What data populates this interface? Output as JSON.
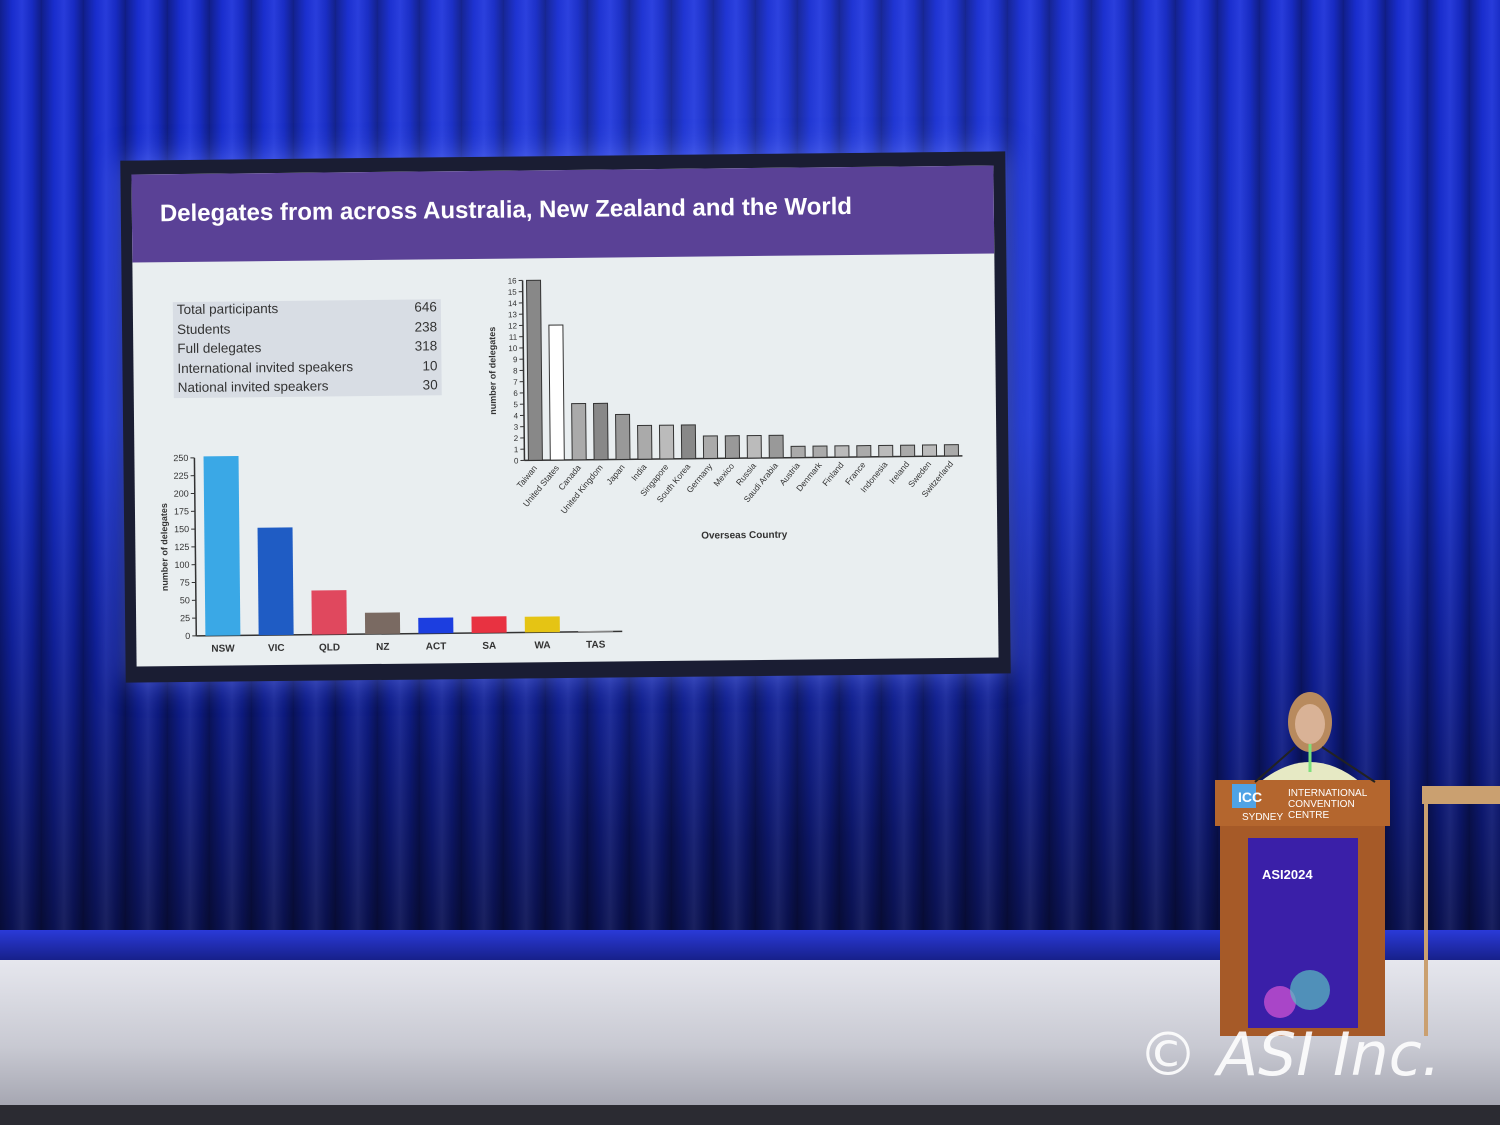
{
  "slide": {
    "title": "Delegates from across Australia, New Zealand and the World",
    "stats": [
      {
        "label": "Total participants",
        "value": "646"
      },
      {
        "label": "Students",
        "value": "238"
      },
      {
        "label": "Full delegates",
        "value": "318"
      },
      {
        "label": "International invited speakers",
        "value": "10"
      },
      {
        "label": "National invited speakers",
        "value": "30"
      }
    ]
  },
  "chart_data": [
    {
      "type": "bar",
      "title": "",
      "xlabel": "",
      "ylabel": "number of delegates",
      "ylim": [
        0,
        250
      ],
      "yticks": [
        0,
        25,
        50,
        75,
        100,
        125,
        150,
        175,
        200,
        225,
        250
      ],
      "categories": [
        "NSW",
        "VIC",
        "QLD",
        "NZ",
        "ACT",
        "SA",
        "WA",
        "TAS"
      ],
      "values": [
        252,
        151,
        62,
        30,
        22,
        23,
        22,
        1
      ],
      "colors": [
        "#3aa8e6",
        "#1f5cc4",
        "#e0485e",
        "#7a6a62",
        "#1c3ee0",
        "#e83241",
        "#e5c414",
        "#bbbbbb"
      ]
    },
    {
      "type": "bar",
      "title": "",
      "xlabel": "Overseas Country",
      "ylabel": "number of delegates",
      "ylim": [
        0,
        16
      ],
      "yticks": [
        0,
        1,
        2,
        3,
        4,
        5,
        6,
        7,
        8,
        9,
        10,
        11,
        12,
        13,
        14,
        15,
        16
      ],
      "categories": [
        "Taiwan",
        "United States",
        "Canada",
        "United Kingdom",
        "Japan",
        "India",
        "Singapore",
        "South Korea",
        "Germany",
        "Mexico",
        "Russia",
        "Saudi Arabia",
        "Austria",
        "Denmark",
        "Finland",
        "France",
        "Indonesia",
        "Ireland",
        "Sweden",
        "Switzerland"
      ],
      "values": [
        16,
        12,
        5,
        5,
        4,
        3,
        3,
        3,
        2,
        2,
        2,
        2,
        1,
        1,
        1,
        1,
        1,
        1,
        1,
        1
      ],
      "colors": [
        "#888888",
        "#ffffff",
        "#aaaaaa",
        "#888888",
        "#999999",
        "#aaaaaa",
        "#bbbbbb",
        "#888888",
        "#aaaaaa",
        "#999999",
        "#bbbbbb",
        "#999999",
        "#aaaaaa",
        "#aaaaaa",
        "#bbbbbb",
        "#aaaaaa",
        "#bbbbbb",
        "#aaaaaa",
        "#bbbbbb",
        "#aaaaaa"
      ]
    }
  ],
  "podium": {
    "sign_line1": "INTERNATIONAL",
    "sign_line2": "CONVENTION",
    "sign_line3": "CENTRE",
    "sign_city": "SYDNEY",
    "sign_logo": "ICC",
    "banner": "ASI2024"
  },
  "watermark": "© ASI Inc."
}
